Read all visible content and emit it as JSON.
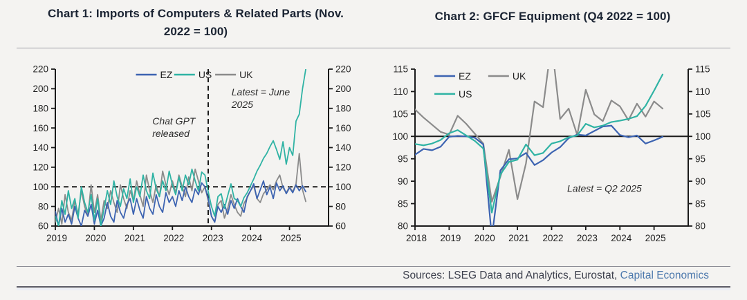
{
  "colors": {
    "background": "#f4f3f1",
    "title": "#1b2433",
    "axis": "#1a1a1a",
    "tick_label": "#1f1f1f",
    "annotation": "#2a2a2a",
    "footer_text": "#3e414e",
    "footer_link": "#4d79ad",
    "series_ez": "#3c63b1",
    "series_us": "#2fb3a4",
    "series_uk": "#8b8b8b"
  },
  "chart_data": [
    {
      "type": "line",
      "title": "Chart 1: Imports of Computers & Related Parts (Nov. 2022 = 100)",
      "title_lines": [
        "Chart 1: Imports of Computers & Related Parts (Nov.",
        "2022 = 100)"
      ],
      "x_frequency": "monthly",
      "x_start": "2019-01",
      "x_end": "2025-06",
      "x_tick_labels": [
        "2019",
        "2020",
        "2021",
        "2022",
        "2023",
        "2024",
        "2025"
      ],
      "x_units_per_tick": 12,
      "x_total_units": 84,
      "ylim": [
        60,
        220
      ],
      "ytick_step": 20,
      "ytick_labels": [
        "60",
        "80",
        "100",
        "120",
        "140",
        "160",
        "180",
        "200",
        "220"
      ],
      "grid": false,
      "line_width": 1.8,
      "reference_lines": [
        {
          "orientation": "horizontal",
          "value": 100,
          "style": "dashed"
        },
        {
          "orientation": "vertical",
          "unit": 47,
          "style": "dashed"
        }
      ],
      "legend_position": "top-center-inside",
      "legend": [
        {
          "label": "EZ",
          "series": "EZ",
          "fx": 0.295,
          "fy": 0.035
        },
        {
          "label": "US",
          "series": "US",
          "fx": 0.435,
          "fy": 0.035
        },
        {
          "label": "UK",
          "series": "UK",
          "fx": 0.585,
          "fy": 0.035
        }
      ],
      "annotations": [
        {
          "lines": [
            "Chat GPT",
            "released"
          ],
          "fx": 0.355,
          "fy": 0.3
        },
        {
          "lines": [
            "Latest = June",
            "2025"
          ],
          "fx": 0.645,
          "fy": 0.115
        }
      ],
      "draw_order": [
        "UK",
        "EZ",
        "US"
      ],
      "series": [
        {
          "name": "EZ",
          "color": "#3c63b1",
          "values": [
            75,
            60,
            78,
            64,
            72,
            62,
            80,
            68,
            60,
            76,
            70,
            82,
            62,
            76,
            60,
            68,
            84,
            70,
            64,
            86,
            74,
            68,
            82,
            88,
            72,
            88,
            76,
            68,
            90,
            78,
            72,
            92,
            80,
            74,
            94,
            84,
            90,
            80,
            96,
            86,
            100,
            90,
            84,
            98,
            92,
            104,
            100,
            88,
            70,
            64,
            80,
            74,
            82,
            72,
            86,
            78,
            88,
            80,
            74,
            90,
            96,
            103,
            88,
            97,
            106,
            92,
            100,
            88,
            104,
            96,
            101,
            93,
            99,
            94,
            102,
            96,
            101,
            95
          ]
        },
        {
          "name": "US",
          "color": "#2fb3a4",
          "values": [
            70,
            60,
            86,
            72,
            96,
            78,
            88,
            68,
            100,
            84,
            74,
            92,
            66,
            88,
            60,
            78,
            96,
            82,
            106,
            90,
            80,
            98,
            88,
            108,
            84,
            100,
            90,
            112,
            96,
            88,
            114,
            98,
            90,
            106,
            96,
            116,
            102,
            92,
            110,
            96,
            112,
            102,
            118,
            106,
            96,
            115,
            112,
            95,
            80,
            70,
            90,
            93,
            78,
            91,
            103,
            88,
            86,
            80,
            89,
            94,
            101,
            108,
            116,
            122,
            129,
            134,
            141,
            147,
            138,
            128,
            146,
            123,
            140,
            132,
            167,
            174,
            200,
            220
          ]
        },
        {
          "name": "UK",
          "color": "#8b8b8b",
          "values": [
            64,
            78,
            62,
            92,
            74,
            66,
            86,
            72,
            96,
            80,
            70,
            102,
            74,
            92,
            66,
            86,
            78,
            96,
            84,
            74,
            102,
            88,
            78,
            96,
            86,
            106,
            92,
            80,
            112,
            96,
            84,
            102,
            90,
            116,
            102,
            92,
            106,
            94,
            112,
            100,
            90,
            110,
            96,
            118,
            106,
            94,
            100,
            86,
            70,
            64,
            82,
            86,
            68,
            78,
            92,
            82,
            74,
            70,
            83,
            89,
            96,
            101,
            88,
            84,
            93,
            97,
            102,
            97,
            106,
            112,
            99,
            94,
            100,
            95,
            103,
            134,
            97,
            85
          ]
        }
      ]
    },
    {
      "type": "line",
      "title": "Chart 2: GFCF Equipment (Q4 2022 = 100)",
      "title_lines": [
        "Chart 2: GFCF Equipment (Q4 2022 = 100)"
      ],
      "x_frequency": "quarterly",
      "x_start": "2018-Q1",
      "x_end": "2025-Q2",
      "x_tick_labels": [
        "2018",
        "2019",
        "2020",
        "2021",
        "2022",
        "2023",
        "2024",
        "2025"
      ],
      "x_units_per_tick": 4,
      "x_total_units": 32,
      "ylim": [
        80,
        115
      ],
      "ytick_step": 5,
      "ytick_labels": [
        "80",
        "85",
        "90",
        "95",
        "100",
        "105",
        "110",
        "115"
      ],
      "grid": false,
      "line_width": 2.2,
      "reference_lines": [
        {
          "orientation": "horizontal",
          "value": 100,
          "style": "solid"
        }
      ],
      "legend_position": "top-left-inside",
      "legend": [
        {
          "label": "EZ",
          "series": "EZ",
          "fx": 0.071,
          "fy": 0.044
        },
        {
          "label": "UK",
          "series": "UK",
          "fx": 0.268,
          "fy": 0.044
        },
        {
          "label": "US",
          "series": "US",
          "fx": 0.071,
          "fy": 0.158
        }
      ],
      "annotations": [
        {
          "lines": [
            "Latest = Q2 2025"
          ],
          "fx": 0.557,
          "fy": 0.73
        }
      ],
      "draw_order": [
        "UK",
        "EZ",
        "US"
      ],
      "series": [
        {
          "name": "EZ",
          "color": "#3c63b1",
          "values": [
            95.9,
            97.2,
            96.9,
            97.7,
            99.9,
            100.1,
            100.0,
            99.7,
            98.2,
            77.5,
            92.4,
            94.9,
            95.1,
            96.3,
            93.6,
            94.7,
            96.4,
            97.6,
            99.6,
            100.4,
            100.2,
            101.2,
            102.2,
            102.4,
            100.3,
            99.8,
            100.2,
            98.4,
            99.1,
            99.9
          ]
        },
        {
          "name": "US",
          "color": "#2fb3a4",
          "values": [
            98.3,
            98.0,
            98.4,
            99.2,
            100.7,
            101.4,
            100.2,
            99.0,
            97.3,
            83.0,
            91.5,
            94.3,
            94.8,
            98.2,
            95.8,
            96.3,
            98.4,
            98.9,
            99.8,
            100.2,
            102.8,
            102.0,
            102.4,
            103.2,
            103.5,
            103.9,
            104.5,
            106.8,
            110.2,
            113.8
          ]
        },
        {
          "name": "UK",
          "color": "#8b8b8b",
          "values": [
            106.0,
            104.2,
            102.6,
            101.0,
            100.4,
            104.6,
            102.8,
            100.6,
            98.4,
            85.4,
            91.0,
            97.0,
            86.0,
            94.0,
            107.8,
            106.5,
            121.0,
            103.9,
            106.2,
            100.3,
            110.4,
            104.9,
            103.4,
            108.0,
            106.7,
            103.6,
            107.3,
            104.4,
            107.8,
            106.2
          ]
        }
      ]
    }
  ],
  "footer": {
    "prefix": "Sources: LSEG Data and Analytics, Eurostat, ",
    "link_label": "Capital Economics"
  }
}
